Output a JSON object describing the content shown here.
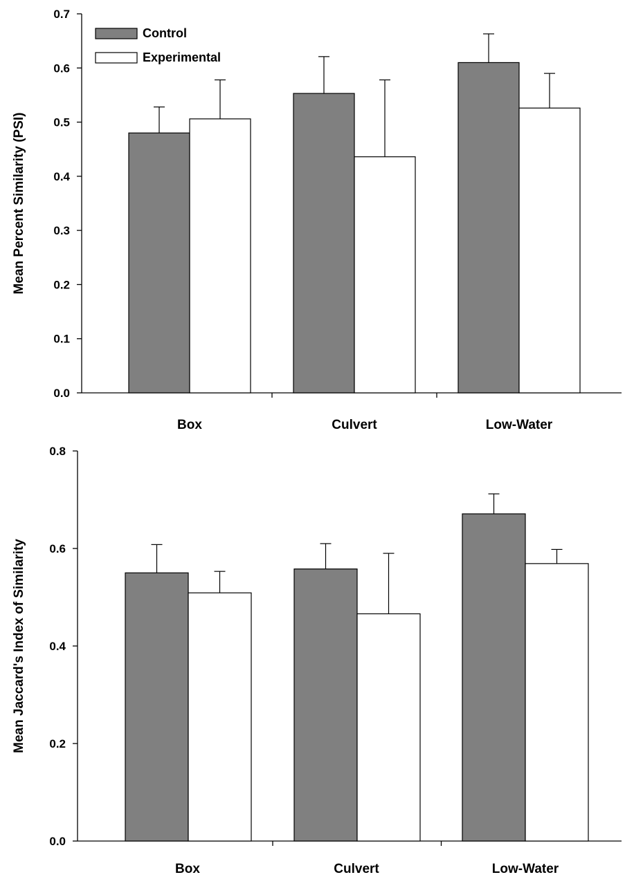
{
  "colors": {
    "control": "#808080",
    "experimental": "#ffffff",
    "stroke": "#000000"
  },
  "chart_data": [
    {
      "type": "bar",
      "title": "",
      "xlabel": "",
      "ylabel": "Mean Percent Similarity (PSI)",
      "ylim": [
        0,
        0.7
      ],
      "yticks": [
        "0.0",
        "0.1",
        "0.2",
        "0.3",
        "0.4",
        "0.5",
        "0.6",
        "0.7"
      ],
      "grid": false,
      "legend": "top-left",
      "categories": [
        "Box",
        "Culvert",
        "Low-Water"
      ],
      "series": [
        {
          "name": "Control",
          "values": [
            0.48,
            0.553,
            0.61
          ],
          "errors": [
            0.048,
            0.068,
            0.053
          ]
        },
        {
          "name": "Experimental",
          "values": [
            0.506,
            0.436,
            0.526
          ],
          "errors": [
            0.072,
            0.142,
            0.064
          ]
        }
      ]
    },
    {
      "type": "bar",
      "title": "",
      "xlabel": "",
      "ylabel": "Mean Jaccard's Index of Similarity",
      "ylim": [
        0,
        0.8
      ],
      "yticks": [
        "0.0",
        "0.2",
        "0.4",
        "0.6",
        "0.8"
      ],
      "grid": false,
      "legend": "",
      "categories": [
        "Box",
        "Culvert",
        "Low-Water"
      ],
      "series": [
        {
          "values": [
            0.55,
            0.558,
            0.671
          ],
          "errors": [
            0.058,
            0.052,
            0.041
          ]
        },
        {
          "values": [
            0.509,
            0.466,
            0.569
          ],
          "errors": [
            0.044,
            0.124,
            0.029
          ]
        }
      ]
    }
  ]
}
